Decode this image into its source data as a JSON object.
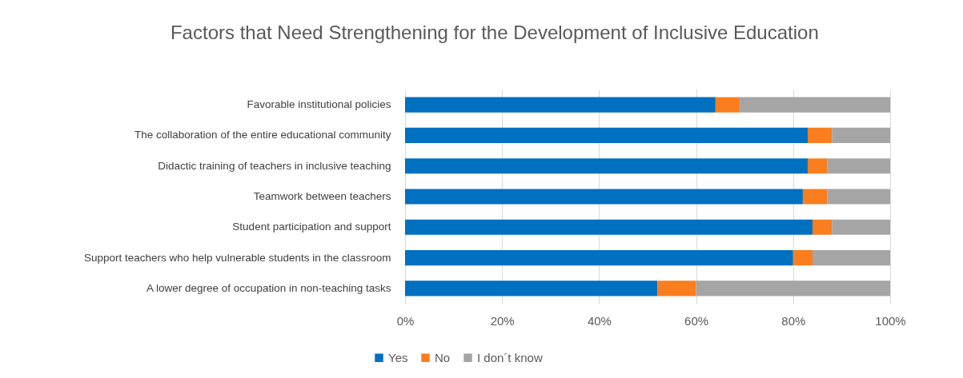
{
  "chart_data": {
    "type": "bar",
    "orientation": "horizontal",
    "stacked": true,
    "title": "Factors that Need Strengthening for the Development of Inclusive Education",
    "categories": [
      "Favorable institutional policies",
      "The collaboration of the entire educational community",
      "Didactic training of teachers in inclusive teaching",
      "Teamwork between teachers",
      "Student participation and support",
      "Support teachers who help vulnerable students in the classroom",
      "A lower degree of occupation in non-teaching tasks"
    ],
    "series": [
      {
        "name": "Yes",
        "color": "#0070c0",
        "values": [
          64,
          83,
          83,
          82,
          84,
          80,
          52
        ]
      },
      {
        "name": "No",
        "color": "#fa7d1e",
        "values": [
          5,
          5,
          4,
          5,
          4,
          4,
          8
        ]
      },
      {
        "name": "I don´t know",
        "color": "#a5a5a5",
        "values": [
          31,
          12,
          13,
          13,
          12,
          16,
          40
        ]
      }
    ],
    "xlim": [
      0,
      100
    ],
    "xticks": [
      {
        "value": 0,
        "label": "0%"
      },
      {
        "value": 20,
        "label": "20%"
      },
      {
        "value": 40,
        "label": "40%"
      },
      {
        "value": 60,
        "label": "60%"
      },
      {
        "value": 80,
        "label": "80%"
      },
      {
        "value": 100,
        "label": "100%"
      }
    ],
    "grid": "x",
    "legend": "bottom"
  }
}
